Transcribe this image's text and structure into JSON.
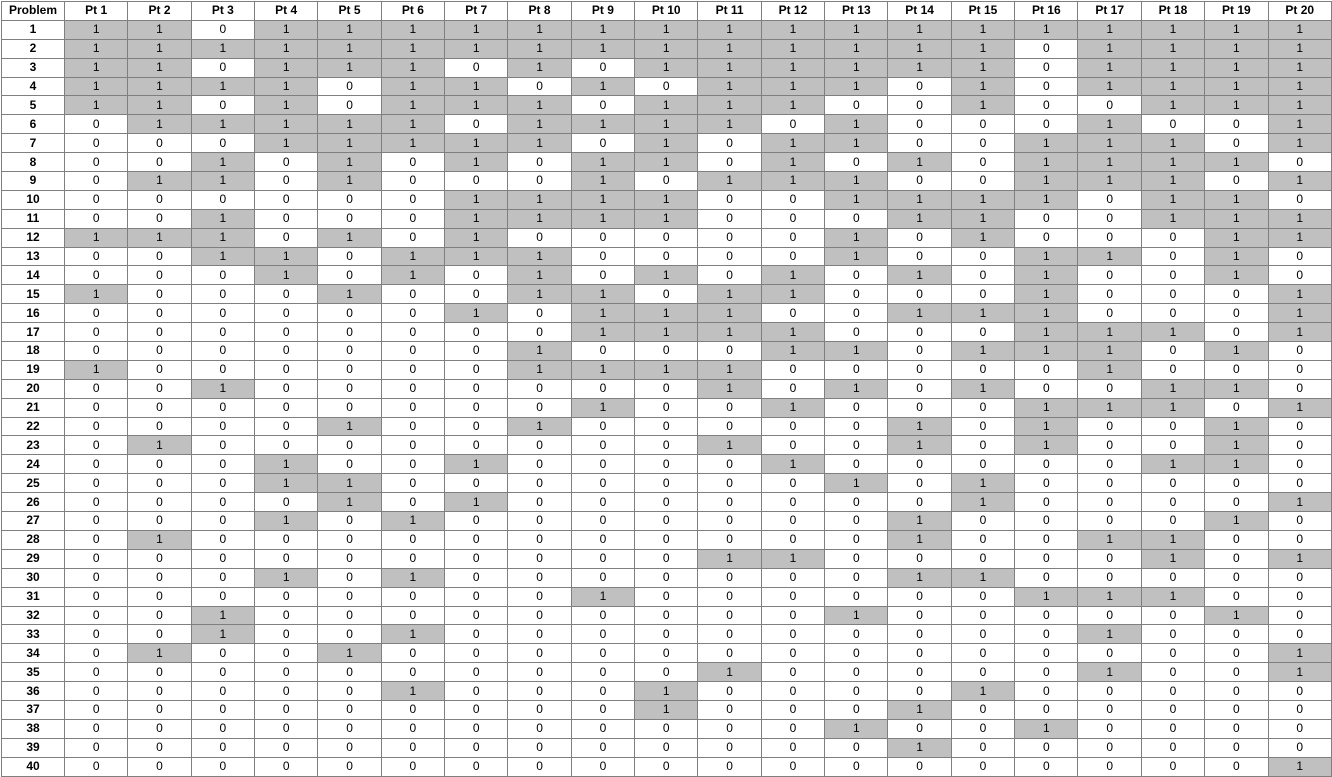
{
  "table": {
    "corner_label": "Problem",
    "columns": [
      "Pt 1",
      "Pt 2",
      "Pt 3",
      "Pt 4",
      "Pt 5",
      "Pt 6",
      "Pt 7",
      "Pt 8",
      "Pt 9",
      "Pt 10",
      "Pt 11",
      "Pt 12",
      "Pt 13",
      "Pt 14",
      "Pt 15",
      "Pt 16",
      "Pt 17",
      "Pt 18",
      "Pt 19",
      "Pt 20"
    ],
    "highlight_color": "#c0c0c0",
    "rows": [
      {
        "problem": "1",
        "values": [
          1,
          1,
          0,
          1,
          1,
          1,
          1,
          1,
          1,
          1,
          1,
          1,
          1,
          1,
          1,
          1,
          1,
          1,
          1,
          1
        ]
      },
      {
        "problem": "2",
        "values": [
          1,
          1,
          1,
          1,
          1,
          1,
          1,
          1,
          1,
          1,
          1,
          1,
          1,
          1,
          1,
          0,
          1,
          1,
          1,
          1
        ]
      },
      {
        "problem": "3",
        "values": [
          1,
          1,
          0,
          1,
          1,
          1,
          0,
          1,
          0,
          1,
          1,
          1,
          1,
          1,
          1,
          0,
          1,
          1,
          1,
          1
        ]
      },
      {
        "problem": "4",
        "values": [
          1,
          1,
          1,
          1,
          0,
          1,
          1,
          0,
          1,
          0,
          1,
          1,
          1,
          0,
          1,
          0,
          1,
          1,
          1,
          1
        ]
      },
      {
        "problem": "5",
        "values": [
          1,
          1,
          0,
          1,
          0,
          1,
          1,
          1,
          0,
          1,
          1,
          1,
          0,
          0,
          1,
          0,
          0,
          1,
          1,
          1
        ]
      },
      {
        "problem": "6",
        "values": [
          0,
          1,
          1,
          1,
          1,
          1,
          0,
          1,
          1,
          1,
          1,
          0,
          1,
          0,
          0,
          0,
          1,
          0,
          0,
          1
        ]
      },
      {
        "problem": "7",
        "values": [
          0,
          0,
          0,
          1,
          1,
          1,
          1,
          1,
          0,
          1,
          0,
          1,
          1,
          0,
          0,
          1,
          1,
          1,
          0,
          1
        ]
      },
      {
        "problem": "8",
        "values": [
          0,
          0,
          1,
          0,
          1,
          0,
          1,
          0,
          1,
          1,
          0,
          1,
          0,
          1,
          0,
          1,
          1,
          1,
          1,
          0
        ]
      },
      {
        "problem": "9",
        "values": [
          0,
          1,
          1,
          0,
          1,
          0,
          0,
          0,
          1,
          0,
          1,
          1,
          1,
          0,
          0,
          1,
          1,
          1,
          0,
          1
        ]
      },
      {
        "problem": "10",
        "values": [
          0,
          0,
          0,
          0,
          0,
          0,
          1,
          1,
          1,
          1,
          0,
          0,
          1,
          1,
          1,
          1,
          0,
          1,
          1,
          0
        ]
      },
      {
        "problem": "11",
        "values": [
          0,
          0,
          1,
          0,
          0,
          0,
          1,
          1,
          1,
          1,
          0,
          0,
          0,
          1,
          1,
          0,
          0,
          1,
          1,
          1
        ]
      },
      {
        "problem": "12",
        "values": [
          1,
          1,
          1,
          0,
          1,
          0,
          1,
          0,
          0,
          0,
          0,
          0,
          1,
          0,
          1,
          0,
          0,
          0,
          1,
          1
        ]
      },
      {
        "problem": "13",
        "values": [
          0,
          0,
          1,
          1,
          0,
          1,
          1,
          1,
          0,
          0,
          0,
          0,
          1,
          0,
          0,
          1,
          1,
          0,
          1,
          0
        ]
      },
      {
        "problem": "14",
        "values": [
          0,
          0,
          0,
          1,
          0,
          1,
          0,
          1,
          0,
          1,
          0,
          1,
          0,
          1,
          0,
          1,
          0,
          0,
          1,
          0
        ]
      },
      {
        "problem": "15",
        "values": [
          1,
          0,
          0,
          0,
          1,
          0,
          0,
          1,
          1,
          0,
          1,
          1,
          0,
          0,
          0,
          1,
          0,
          0,
          0,
          1
        ]
      },
      {
        "problem": "16",
        "values": [
          0,
          0,
          0,
          0,
          0,
          0,
          1,
          0,
          1,
          1,
          1,
          0,
          0,
          1,
          1,
          1,
          0,
          0,
          0,
          1
        ]
      },
      {
        "problem": "17",
        "values": [
          0,
          0,
          0,
          0,
          0,
          0,
          0,
          0,
          1,
          1,
          1,
          1,
          0,
          0,
          0,
          1,
          1,
          1,
          0,
          1
        ]
      },
      {
        "problem": "18",
        "values": [
          0,
          0,
          0,
          0,
          0,
          0,
          0,
          1,
          0,
          0,
          0,
          1,
          1,
          0,
          1,
          1,
          1,
          0,
          1,
          0
        ]
      },
      {
        "problem": "19",
        "values": [
          1,
          0,
          0,
          0,
          0,
          0,
          0,
          1,
          1,
          1,
          1,
          0,
          0,
          0,
          0,
          0,
          1,
          0,
          0,
          0
        ]
      },
      {
        "problem": "20",
        "values": [
          0,
          0,
          1,
          0,
          0,
          0,
          0,
          0,
          0,
          0,
          1,
          0,
          1,
          0,
          1,
          0,
          0,
          1,
          1,
          0
        ]
      },
      {
        "problem": "21",
        "values": [
          0,
          0,
          0,
          0,
          0,
          0,
          0,
          0,
          1,
          0,
          0,
          1,
          0,
          0,
          0,
          1,
          1,
          1,
          0,
          1
        ]
      },
      {
        "problem": "22",
        "values": [
          0,
          0,
          0,
          0,
          1,
          0,
          0,
          1,
          0,
          0,
          0,
          0,
          0,
          1,
          0,
          1,
          0,
          0,
          1,
          0
        ]
      },
      {
        "problem": "23",
        "values": [
          0,
          1,
          0,
          0,
          0,
          0,
          0,
          0,
          0,
          0,
          1,
          0,
          0,
          1,
          0,
          1,
          0,
          0,
          1,
          0
        ]
      },
      {
        "problem": "24",
        "values": [
          0,
          0,
          0,
          1,
          0,
          0,
          1,
          0,
          0,
          0,
          0,
          1,
          0,
          0,
          0,
          0,
          0,
          1,
          1,
          0
        ]
      },
      {
        "problem": "25",
        "values": [
          0,
          0,
          0,
          1,
          1,
          0,
          0,
          0,
          0,
          0,
          0,
          0,
          1,
          0,
          1,
          0,
          0,
          0,
          0,
          0
        ]
      },
      {
        "problem": "26",
        "values": [
          0,
          0,
          0,
          0,
          1,
          0,
          1,
          0,
          0,
          0,
          0,
          0,
          0,
          0,
          1,
          0,
          0,
          0,
          0,
          1
        ]
      },
      {
        "problem": "27",
        "values": [
          0,
          0,
          0,
          1,
          0,
          1,
          0,
          0,
          0,
          0,
          0,
          0,
          0,
          1,
          0,
          0,
          0,
          0,
          1,
          0
        ]
      },
      {
        "problem": "28",
        "values": [
          0,
          1,
          0,
          0,
          0,
          0,
          0,
          0,
          0,
          0,
          0,
          0,
          0,
          1,
          0,
          0,
          1,
          1,
          0,
          0
        ]
      },
      {
        "problem": "29",
        "values": [
          0,
          0,
          0,
          0,
          0,
          0,
          0,
          0,
          0,
          0,
          1,
          1,
          0,
          0,
          0,
          0,
          0,
          1,
          0,
          1
        ]
      },
      {
        "problem": "30",
        "values": [
          0,
          0,
          0,
          1,
          0,
          1,
          0,
          0,
          0,
          0,
          0,
          0,
          0,
          1,
          1,
          0,
          0,
          0,
          0,
          0
        ]
      },
      {
        "problem": "31",
        "values": [
          0,
          0,
          0,
          0,
          0,
          0,
          0,
          0,
          1,
          0,
          0,
          0,
          0,
          0,
          0,
          1,
          1,
          1,
          0,
          0
        ]
      },
      {
        "problem": "32",
        "values": [
          0,
          0,
          1,
          0,
          0,
          0,
          0,
          0,
          0,
          0,
          0,
          0,
          1,
          0,
          0,
          0,
          0,
          0,
          1,
          0
        ]
      },
      {
        "problem": "33",
        "values": [
          0,
          0,
          1,
          0,
          0,
          1,
          0,
          0,
          0,
          0,
          0,
          0,
          0,
          0,
          0,
          0,
          1,
          0,
          0,
          0
        ]
      },
      {
        "problem": "34",
        "values": [
          0,
          1,
          0,
          0,
          1,
          0,
          0,
          0,
          0,
          0,
          0,
          0,
          0,
          0,
          0,
          0,
          0,
          0,
          0,
          1
        ]
      },
      {
        "problem": "35",
        "values": [
          0,
          0,
          0,
          0,
          0,
          0,
          0,
          0,
          0,
          0,
          1,
          0,
          0,
          0,
          0,
          0,
          1,
          0,
          0,
          1
        ]
      },
      {
        "problem": "36",
        "values": [
          0,
          0,
          0,
          0,
          0,
          1,
          0,
          0,
          0,
          1,
          0,
          0,
          0,
          0,
          1,
          0,
          0,
          0,
          0,
          0
        ]
      },
      {
        "problem": "37",
        "values": [
          0,
          0,
          0,
          0,
          0,
          0,
          0,
          0,
          0,
          1,
          0,
          0,
          0,
          1,
          0,
          0,
          0,
          0,
          0,
          0
        ]
      },
      {
        "problem": "38",
        "values": [
          0,
          0,
          0,
          0,
          0,
          0,
          0,
          0,
          0,
          0,
          0,
          0,
          1,
          0,
          0,
          1,
          0,
          0,
          0,
          0
        ]
      },
      {
        "problem": "39",
        "values": [
          0,
          0,
          0,
          0,
          0,
          0,
          0,
          0,
          0,
          0,
          0,
          0,
          0,
          1,
          0,
          0,
          0,
          0,
          0,
          0
        ]
      },
      {
        "problem": "40",
        "values": [
          0,
          0,
          0,
          0,
          0,
          0,
          0,
          0,
          0,
          0,
          0,
          0,
          0,
          0,
          0,
          0,
          0,
          0,
          0,
          1
        ]
      }
    ]
  }
}
